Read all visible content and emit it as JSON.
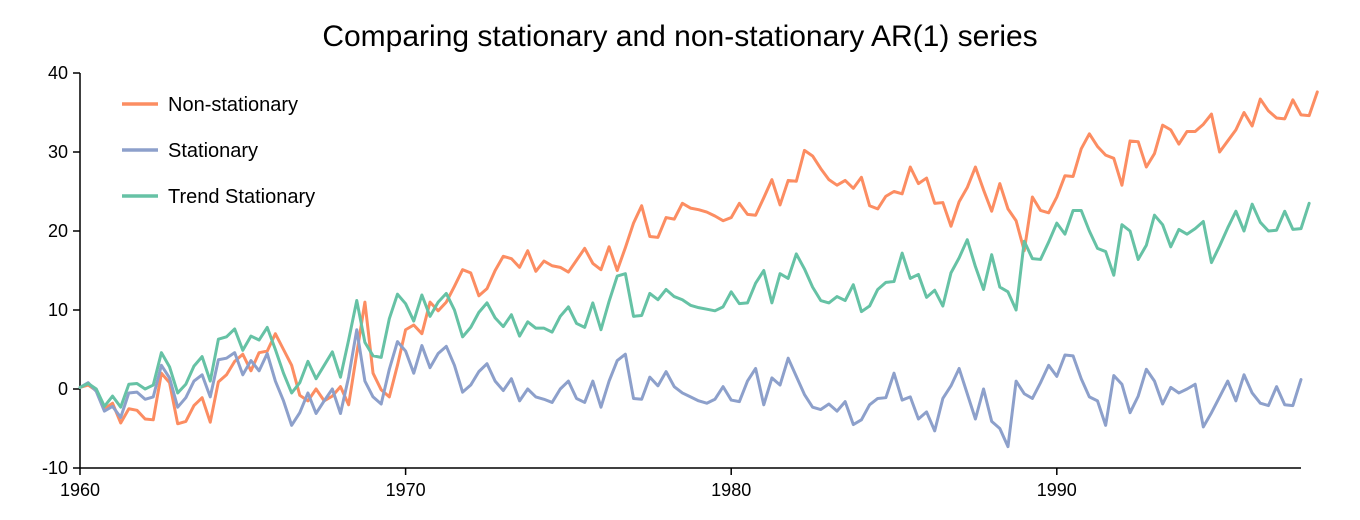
{
  "chart_data": {
    "type": "line",
    "title": "Comparing stationary and non-stationary AR(1) series",
    "xlabel": "",
    "ylabel": "",
    "xlim": [
      1960,
      1997.5
    ],
    "ylim": [
      -10,
      40
    ],
    "x_ticks": [
      "1960",
      "1970",
      "1980",
      "1990"
    ],
    "y_ticks": [
      "40",
      "30",
      "20",
      "10",
      "0",
      "-10"
    ],
    "grid": false,
    "legend_position": "top-left",
    "x_start": 1960.0,
    "x_step": 0.25,
    "series": [
      {
        "name": "Non-stationary",
        "color": "#fc8d62",
        "values": [
          0.2,
          0.5,
          -0.2,
          -2.5,
          -1.8,
          -4.3,
          -2.5,
          -2.7,
          -3.8,
          -3.9,
          2.0,
          0.8,
          -4.4,
          -4.1,
          -2.1,
          -1.1,
          -4.2,
          0.9,
          1.8,
          3.5,
          4.4,
          2.3,
          4.6,
          4.8,
          7.0,
          5.0,
          3.0,
          -0.8,
          -1.5,
          0.0,
          -1.5,
          -0.9,
          0.3,
          -2.0,
          4.5,
          11.0,
          2.0,
          -0.1,
          -1.0,
          3.0,
          7.5,
          8.1,
          7.0,
          11.0,
          9.9,
          11.0,
          13.0,
          15.1,
          14.7,
          11.8,
          12.7,
          15.0,
          16.8,
          16.5,
          15.4,
          17.5,
          14.9,
          16.2,
          15.6,
          15.4,
          14.8,
          16.3,
          17.8,
          15.9,
          15.1,
          18.0,
          15.0,
          17.9,
          21.0,
          23.2,
          19.3,
          19.2,
          21.7,
          21.5,
          23.5,
          22.9,
          22.7,
          22.4,
          21.9,
          21.3,
          21.7,
          23.5,
          22.1,
          22.0,
          24.2,
          26.5,
          23.3,
          26.4,
          26.3,
          30.2,
          29.5,
          27.9,
          26.5,
          25.8,
          26.4,
          25.4,
          26.8,
          23.2,
          22.8,
          24.4,
          25.0,
          24.7,
          28.1,
          26.0,
          26.7,
          23.5,
          23.6,
          20.6,
          23.7,
          25.5,
          28.1,
          25.2,
          22.5,
          26.0,
          22.8,
          21.3,
          17.5,
          24.3,
          22.6,
          22.3,
          24.3,
          27.0,
          26.9,
          30.4,
          32.3,
          30.7,
          29.6,
          29.2,
          25.8,
          31.4,
          31.3,
          28.1,
          29.8,
          33.4,
          32.8,
          31.0,
          32.6,
          32.6,
          33.5,
          34.8,
          30.0,
          31.4,
          32.8,
          35.0,
          33.3,
          36.7,
          35.2,
          34.3,
          34.2,
          36.6,
          34.7,
          34.6,
          37.6
        ]
      },
      {
        "name": "Stationary",
        "color": "#8da0cb",
        "values": [
          0.2,
          0.8,
          -0.3,
          -2.8,
          -2.2,
          -3.6,
          -0.5,
          -0.4,
          -1.3,
          -1.0,
          3.0,
          1.4,
          -2.3,
          -1.1,
          1.0,
          1.8,
          -1.0,
          3.7,
          3.9,
          4.6,
          1.8,
          3.6,
          2.3,
          4.5,
          1.0,
          -1.5,
          -4.6,
          -3.0,
          -0.5,
          -3.1,
          -1.5,
          0.0,
          -3.1,
          1.5,
          7.5,
          1.0,
          -1.0,
          -1.9,
          2.5,
          6.0,
          4.8,
          2.0,
          5.5,
          2.7,
          4.5,
          5.4,
          3.0,
          -0.4,
          0.5,
          2.2,
          3.2,
          1.0,
          -0.2,
          1.3,
          -1.5,
          0.0,
          -1.0,
          -1.3,
          -1.7,
          0.0,
          1.0,
          -1.2,
          -1.7,
          1.0,
          -2.3,
          1.0,
          3.6,
          4.4,
          -1.2,
          -1.3,
          1.5,
          0.4,
          2.2,
          0.3,
          -0.5,
          -1.0,
          -1.5,
          -1.8,
          -1.3,
          0.3,
          -1.4,
          -1.6,
          1.0,
          2.6,
          -2.0,
          1.4,
          0.5,
          3.9,
          1.6,
          -0.7,
          -2.3,
          -2.6,
          -1.9,
          -2.8,
          -1.6,
          -4.5,
          -3.9,
          -2.0,
          -1.2,
          -1.1,
          2.0,
          -1.4,
          -1.0,
          -3.8,
          -2.9,
          -5.3,
          -1.2,
          0.4,
          2.6,
          -0.6,
          -3.8,
          0.0,
          -4.1,
          -5.0,
          -7.3,
          1.0,
          -0.6,
          -1.2,
          0.8,
          3.0,
          1.6,
          4.3,
          4.2,
          1.3,
          -1.0,
          -1.5,
          -4.6,
          1.7,
          0.6,
          -3.0,
          -0.9,
          2.5,
          1.0,
          -1.9,
          0.2,
          -0.5,
          0.0,
          0.6,
          -4.8,
          -3.0,
          -1.0,
          1.0,
          -1.5,
          1.8,
          -0.5,
          -1.8,
          -2.1,
          0.3,
          -2.0,
          -2.1,
          1.2
        ]
      },
      {
        "name": "Trend Stationary",
        "color": "#66c2a5",
        "values": [
          0.2,
          0.7,
          0.0,
          -2.2,
          -0.9,
          -2.3,
          0.6,
          0.7,
          0.0,
          0.5,
          4.6,
          2.8,
          -0.5,
          0.6,
          2.9,
          4.1,
          1.0,
          6.3,
          6.6,
          7.6,
          4.9,
          6.7,
          6.2,
          7.8,
          5.0,
          2.0,
          -0.5,
          0.8,
          3.5,
          1.3,
          3.0,
          4.7,
          1.5,
          6.2,
          11.2,
          5.9,
          4.2,
          4.0,
          8.9,
          12.0,
          10.8,
          8.6,
          11.9,
          9.2,
          11.0,
          12.1,
          10.0,
          6.6,
          7.8,
          9.7,
          10.9,
          9.0,
          7.9,
          9.4,
          6.7,
          8.5,
          7.7,
          7.7,
          7.2,
          9.2,
          10.4,
          8.3,
          7.8,
          10.9,
          7.5,
          11.1,
          14.3,
          14.6,
          9.2,
          9.3,
          12.1,
          11.3,
          12.6,
          11.7,
          11.3,
          10.6,
          10.3,
          10.1,
          9.9,
          10.4,
          12.3,
          10.8,
          10.9,
          13.4,
          15.0,
          10.9,
          14.6,
          14.0,
          17.1,
          15.2,
          12.9,
          11.2,
          10.9,
          11.7,
          11.2,
          13.2,
          9.8,
          10.5,
          12.6,
          13.5,
          13.6,
          17.2,
          14.0,
          14.5,
          11.6,
          12.5,
          10.5,
          14.7,
          16.6,
          18.9,
          15.5,
          12.6,
          17.0,
          12.9,
          12.3,
          10.0,
          18.7,
          16.5,
          16.4,
          18.6,
          21.0,
          19.6,
          22.6,
          22.6,
          20.0,
          17.8,
          17.4,
          14.4,
          20.8,
          20.0,
          16.4,
          18.2,
          22.0,
          20.8,
          18.0,
          20.2,
          19.6,
          20.3,
          21.2,
          16.0,
          18.1,
          20.4,
          22.5,
          20.0,
          23.4,
          21.1,
          20.0,
          20.1,
          22.5,
          20.2,
          20.3,
          23.5
        ]
      }
    ]
  }
}
